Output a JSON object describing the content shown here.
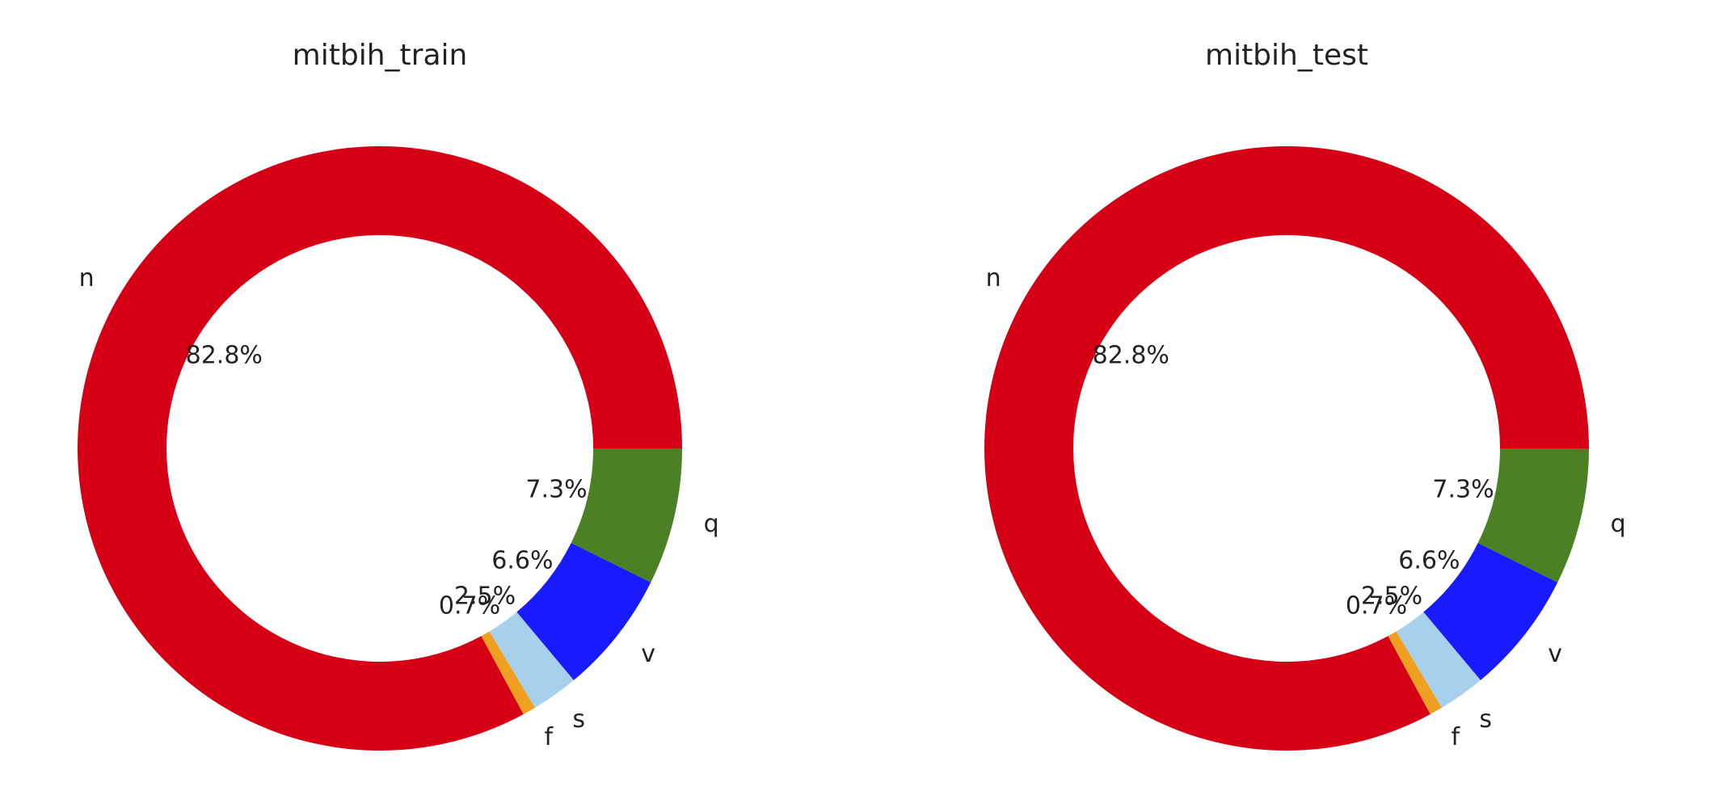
{
  "chart_data": [
    {
      "type": "pie",
      "donut": true,
      "title": "mitbih_train",
      "categories": [
        "n",
        "f",
        "s",
        "v",
        "q"
      ],
      "values": [
        82.8,
        0.7,
        2.5,
        6.6,
        7.3
      ],
      "value_labels": [
        "82.8%",
        "0.7%",
        "2.5%",
        "6.6%",
        "7.3%"
      ],
      "colors": [
        "#d50016",
        "#f0a020",
        "#a6d0ec",
        "#1a1aff",
        "#4c8025"
      ],
      "start_angle_deg": 0,
      "direction": "counterclockwise",
      "legend": "none"
    },
    {
      "type": "pie",
      "donut": true,
      "title": "mitbih_test",
      "categories": [
        "n",
        "f",
        "s",
        "v",
        "q"
      ],
      "values": [
        82.8,
        0.7,
        2.5,
        6.6,
        7.3
      ],
      "value_labels": [
        "82.8%",
        "0.7%",
        "2.5%",
        "6.6%",
        "7.3%"
      ],
      "colors": [
        "#d50016",
        "#f0a020",
        "#a6d0ec",
        "#1a1aff",
        "#4c8025"
      ],
      "start_angle_deg": 0,
      "direction": "counterclockwise",
      "legend": "none"
    }
  ]
}
